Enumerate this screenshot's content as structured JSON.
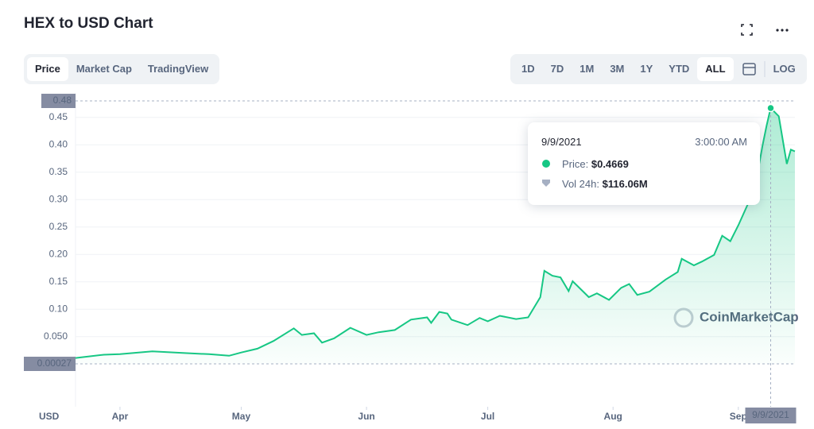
{
  "header": {
    "title": "HEX to USD Chart"
  },
  "tabs": [
    "Price",
    "Market Cap",
    "TradingView"
  ],
  "ranges": [
    "1D",
    "7D",
    "1M",
    "3M",
    "1Y",
    "YTD",
    "ALL"
  ],
  "log": "LOG",
  "tooltip": {
    "date": "9/9/2021",
    "time": "3:00:00 AM",
    "price_label": "Price:",
    "price": "$0.4669",
    "volume_label": "Vol 24h:",
    "volume": "$116.06M"
  },
  "chart_data": {
    "type": "line",
    "currency": "USD",
    "watermark": "CoinMarketCap",
    "color": "#16c784",
    "grid": true,
    "x": [
      "3/21/2021",
      "3/28/2021",
      "4/1/2021",
      "4/9/2021",
      "4/17/2021",
      "4/23/2021",
      "4/28/2021",
      "5/1/2021",
      "5/5/2021",
      "5/9/2021",
      "5/14/2021",
      "5/16/2021",
      "5/19/2021",
      "5/21/2021",
      "5/24/2021",
      "5/28/2021",
      "6/1/2021",
      "6/4/2021",
      "6/8/2021",
      "6/12/2021",
      "6/16/2021",
      "6/17/2021",
      "6/19/2021",
      "6/21/2021",
      "6/22/2021",
      "6/26/2021",
      "6/29/2021",
      "7/1/2021",
      "7/4/2021",
      "7/8/2021",
      "7/11/2021",
      "7/14/2021",
      "7/15/2021",
      "7/17/2021",
      "7/19/2021",
      "7/21/2021",
      "7/22/2021",
      "7/26/2021",
      "7/28/2021",
      "7/31/2021",
      "8/3/2021",
      "8/5/2021",
      "8/7/2021",
      "8/10/2021",
      "8/14/2021",
      "8/17/2021",
      "8/18/2021",
      "8/21/2021",
      "8/23/2021",
      "8/26/2021",
      "8/28/2021",
      "8/30/2021",
      "9/1/2021",
      "9/3/2021",
      "9/5/2021",
      "9/7/2021",
      "9/8/2021",
      "9/9/2021",
      "9/11/2021",
      "9/13/2021",
      "9/14/2021",
      "9/15/2021"
    ],
    "values": [
      0.011,
      0.017,
      0.018,
      0.023,
      0.02,
      0.018,
      0.015,
      0.021,
      0.028,
      0.042,
      0.065,
      0.053,
      0.056,
      0.039,
      0.047,
      0.066,
      0.053,
      0.058,
      0.062,
      0.081,
      0.085,
      0.075,
      0.095,
      0.092,
      0.081,
      0.071,
      0.084,
      0.078,
      0.088,
      0.082,
      0.085,
      0.122,
      0.17,
      0.161,
      0.158,
      0.133,
      0.151,
      0.122,
      0.129,
      0.117,
      0.139,
      0.146,
      0.126,
      0.132,
      0.154,
      0.168,
      0.192,
      0.18,
      0.187,
      0.199,
      0.234,
      0.224,
      0.253,
      0.286,
      0.318,
      0.399,
      0.435,
      0.4669,
      0.452,
      0.365,
      0.391,
      0.388
    ],
    "xlim": [
      "3/21/2021",
      "9/15/2021"
    ],
    "xticks": [
      {
        "value": "4/1/2021",
        "label": "Apr"
      },
      {
        "value": "5/1/2021",
        "label": "May"
      },
      {
        "value": "6/1/2021",
        "label": "Jun"
      },
      {
        "value": "7/1/2021",
        "label": "Jul"
      },
      {
        "value": "8/1/2021",
        "label": "Aug"
      },
      {
        "value": "9/1/2021",
        "label": "Sep"
      }
    ],
    "ylim": [
      0.00027,
      0.48
    ],
    "yticks": [
      {
        "value": 0.05,
        "label": "0.050"
      },
      {
        "value": 0.1,
        "label": "0.10"
      },
      0.15,
      {
        "value": 0.2,
        "label": "0.20"
      },
      0.25,
      {
        "value": 0.3,
        "label": "0.30"
      },
      0.35,
      {
        "value": 0.4,
        "label": "0.40"
      },
      0.45
    ]
  }
}
